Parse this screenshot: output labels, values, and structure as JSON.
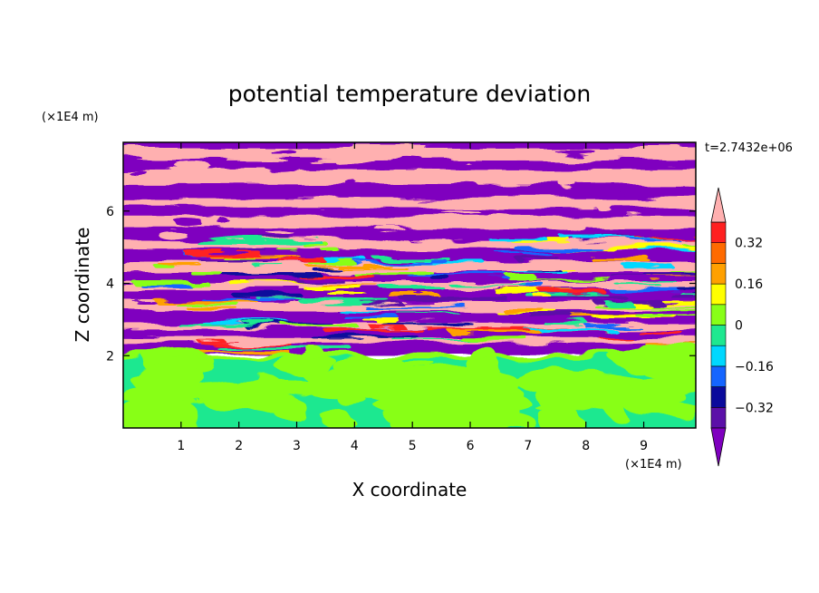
{
  "chart_data": {
    "type": "heatmap",
    "title": "potential temperature deviation",
    "xlabel": "X coordinate",
    "ylabel": "Z coordinate",
    "x_unit": "(×1E4 m)",
    "y_unit": "(×1E4 m)",
    "time_label": "t=2.7432e+06",
    "xlim": [
      0,
      9.9
    ],
    "ylim": [
      0,
      7.9
    ],
    "x_ticks": [
      1,
      2,
      3,
      4,
      5,
      6,
      7,
      8,
      9
    ],
    "y_ticks": [
      2,
      4,
      6
    ],
    "colorbar": {
      "levels": [
        -0.48,
        -0.4,
        -0.32,
        -0.24,
        -0.16,
        -0.08,
        0,
        0.08,
        0.16,
        0.24,
        0.32,
        0.4,
        0.48
      ],
      "colors": [
        "#7f00bf",
        "#5b10a8",
        "#0a0a9c",
        "#1565ff",
        "#00d8ff",
        "#1ee890",
        "#88ff18",
        "#ffff00",
        "#ffa000",
        "#ff6a00",
        "#ff2020",
        "#ffb0b0"
      ],
      "tick_labels": [
        "0.32",
        "0.16",
        "0",
        "−0.16",
        "−0.32"
      ],
      "tick_values": [
        0.32,
        0.16,
        0,
        -0.16,
        -0.32
      ],
      "extend": "both"
    },
    "field_description": "Lower layer (Z below ~2) mostly between -0.08 and 0.08 (green); upper layer alternating strong positive (pink) and strong negative (purple) horizontal bands with turbulent mixed structure between Z 2 and 4.5"
  }
}
